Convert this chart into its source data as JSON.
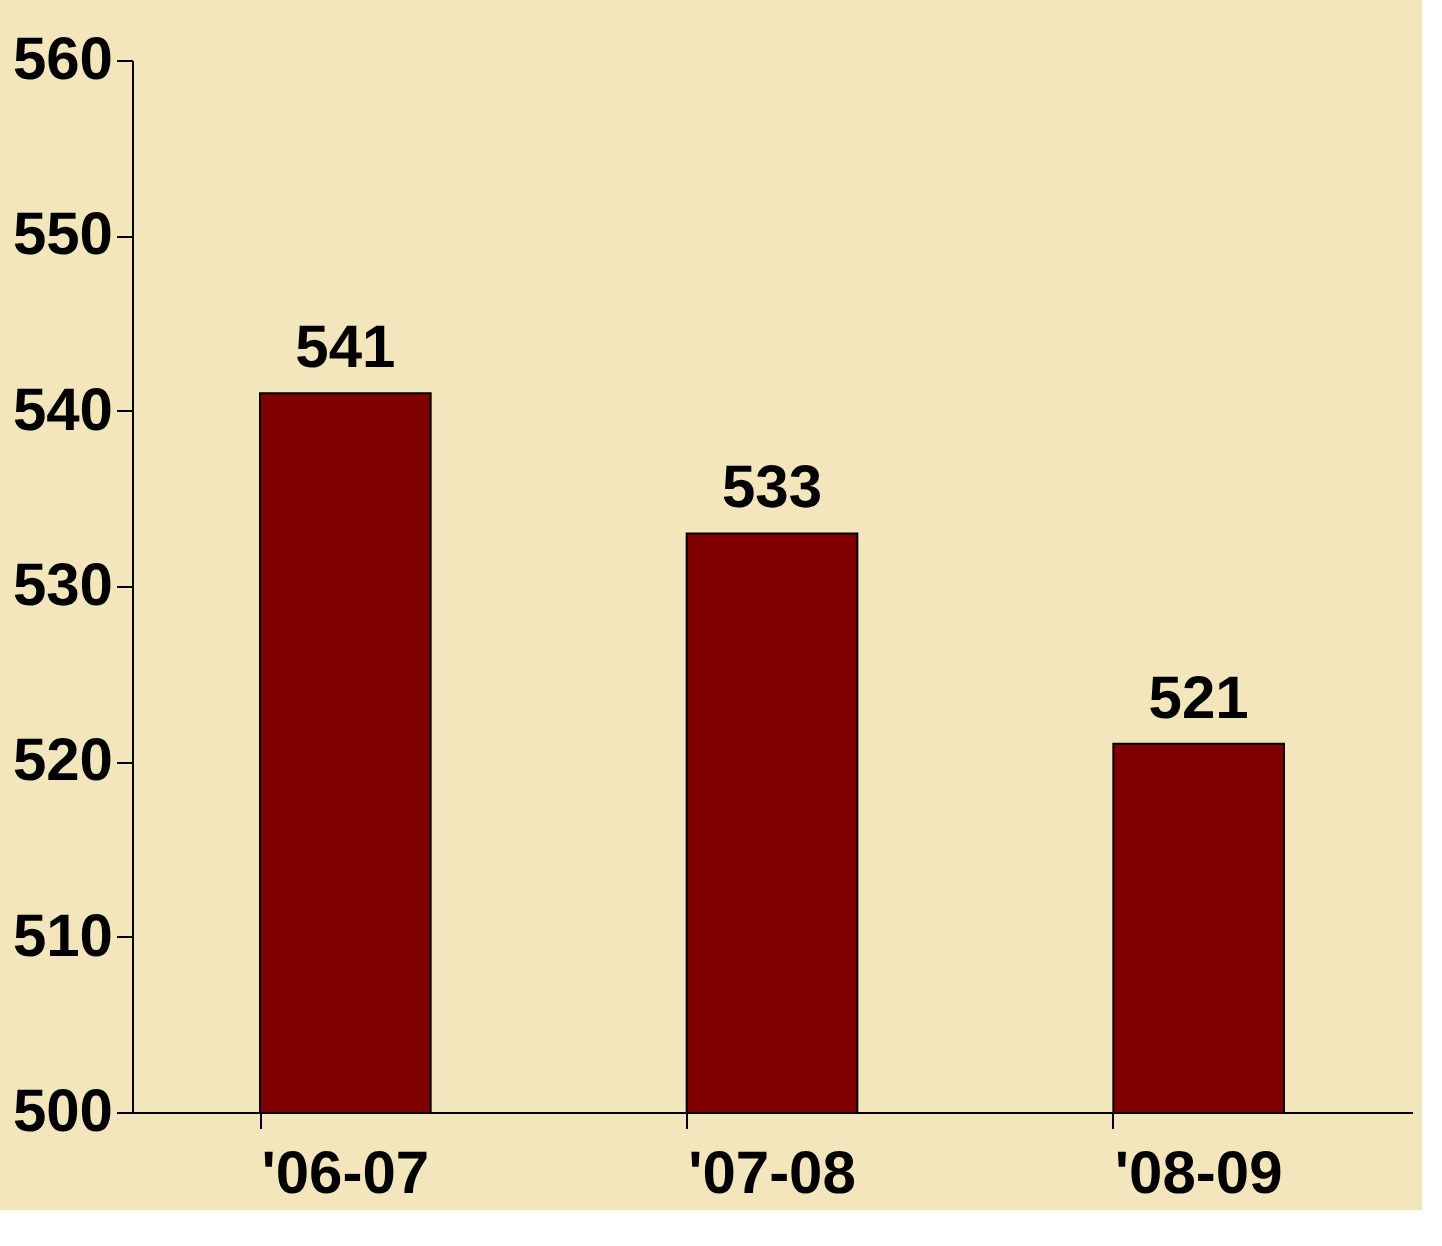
{
  "chart_data": {
    "type": "bar",
    "categories": [
      "'06-07",
      "'07-08",
      "'08-09"
    ],
    "values": [
      541,
      533,
      521
    ],
    "color": "#800000",
    "ylim": [
      500,
      560
    ],
    "yticks": [
      500,
      510,
      520,
      530,
      540,
      550,
      560
    ],
    "data_labels": true,
    "grid": false
  }
}
